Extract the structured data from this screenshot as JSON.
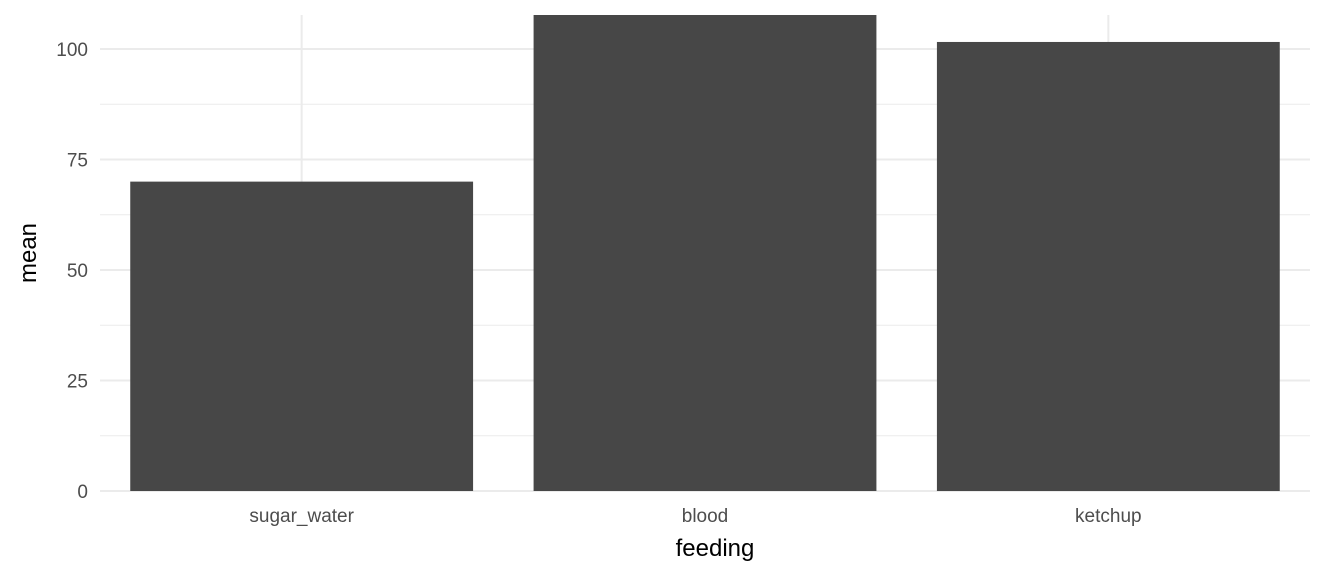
{
  "chart_data": {
    "type": "bar",
    "categories": [
      "sugar_water",
      "blood",
      "ketchup"
    ],
    "values": [
      70,
      107.7,
      101.6
    ],
    "title": "",
    "xlabel": "feeding",
    "ylabel": "mean",
    "ylim": [
      0,
      107.7
    ],
    "yticks": [
      0,
      25,
      50,
      75,
      100
    ],
    "grid": true,
    "bar_color": "#474747",
    "grid_color": "#ebebeb"
  }
}
